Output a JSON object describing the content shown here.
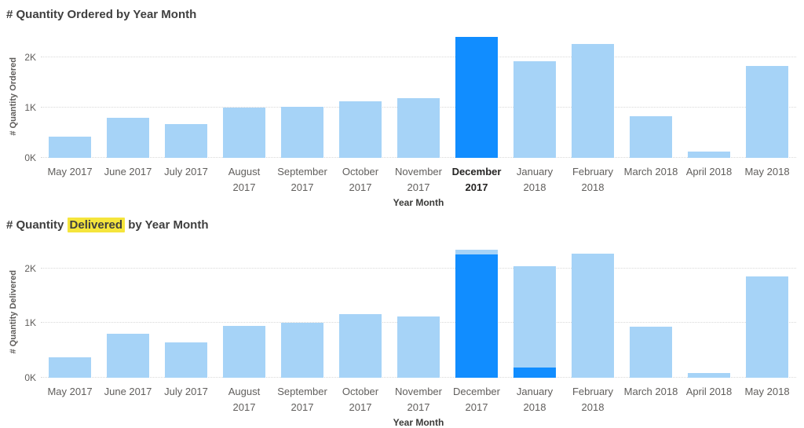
{
  "colors": {
    "bar_highlight": "#118DFF",
    "bar_dim": "#A6D3F7",
    "highlight_yellow": "#F5E53C",
    "title_text": "#3F3F3F",
    "axis_text": "#605E5C",
    "selected_label": "#252423",
    "gridline": "#D9D9D9"
  },
  "chart_data": [
    {
      "type": "bar",
      "title": "# Quantity Ordered by Year Month",
      "title_parts": [
        {
          "text": "# Quantity Ordered by Year Month",
          "highlight": false
        }
      ],
      "xlabel": "Year Month",
      "ylabel": "# Quantity Ordered",
      "ylim": [
        0,
        2450
      ],
      "grid": true,
      "legend": "none",
      "y_ticks": [
        {
          "label": "0K",
          "value": 0
        },
        {
          "label": "1K",
          "value": 1000
        },
        {
          "label": "2K",
          "value": 2000
        }
      ],
      "categories": [
        "May 2017",
        "June 2017",
        "July 2017",
        "August 2017",
        "September 2017",
        "October 2017",
        "November 2017",
        "December 2017",
        "January 2018",
        "February 2018",
        "March 2018",
        "April 2018",
        "May 2018"
      ],
      "values": [
        420,
        800,
        670,
        1000,
        1020,
        1120,
        1190,
        2410,
        1920,
        2270,
        820,
        130,
        1830
      ],
      "selected_category": "December 2017",
      "bars": [
        {
          "label_lines": [
            "May 2017"
          ],
          "selected": false,
          "segments": [
            {
              "value": 420,
              "highlighted": false
            }
          ]
        },
        {
          "label_lines": [
            "June 2017"
          ],
          "selected": false,
          "segments": [
            {
              "value": 800,
              "highlighted": false
            }
          ]
        },
        {
          "label_lines": [
            "July 2017"
          ],
          "selected": false,
          "segments": [
            {
              "value": 670,
              "highlighted": false
            }
          ]
        },
        {
          "label_lines": [
            "August",
            "2017"
          ],
          "selected": false,
          "segments": [
            {
              "value": 1000,
              "highlighted": false
            }
          ]
        },
        {
          "label_lines": [
            "September",
            "2017"
          ],
          "selected": false,
          "segments": [
            {
              "value": 1020,
              "highlighted": false
            }
          ]
        },
        {
          "label_lines": [
            "October",
            "2017"
          ],
          "selected": false,
          "segments": [
            {
              "value": 1120,
              "highlighted": false
            }
          ]
        },
        {
          "label_lines": [
            "November",
            "2017"
          ],
          "selected": false,
          "segments": [
            {
              "value": 1190,
              "highlighted": false
            }
          ]
        },
        {
          "label_lines": [
            "December",
            "2017"
          ],
          "selected": true,
          "segments": [
            {
              "value": 2410,
              "highlighted": true
            }
          ]
        },
        {
          "label_lines": [
            "January",
            "2018"
          ],
          "selected": false,
          "segments": [
            {
              "value": 1920,
              "highlighted": false
            }
          ]
        },
        {
          "label_lines": [
            "February",
            "2018"
          ],
          "selected": false,
          "segments": [
            {
              "value": 2270,
              "highlighted": false
            }
          ]
        },
        {
          "label_lines": [
            "March 2018"
          ],
          "selected": false,
          "segments": [
            {
              "value": 820,
              "highlighted": false
            }
          ]
        },
        {
          "label_lines": [
            "April 2018"
          ],
          "selected": false,
          "segments": [
            {
              "value": 130,
              "highlighted": false
            }
          ]
        },
        {
          "label_lines": [
            "May 2018"
          ],
          "selected": false,
          "segments": [
            {
              "value": 1830,
              "highlighted": false
            }
          ]
        }
      ]
    },
    {
      "type": "bar",
      "title": "# Quantity Delivered by Year Month",
      "title_parts": [
        {
          "text": "# Quantity ",
          "highlight": false
        },
        {
          "text": "Delivered",
          "highlight": true
        },
        {
          "text": " by Year Month",
          "highlight": false
        }
      ],
      "xlabel": "Year Month",
      "ylabel": "# Quantity Delivered",
      "ylim": [
        0,
        2400
      ],
      "grid": true,
      "legend": "none",
      "y_ticks": [
        {
          "label": "0K",
          "value": 0
        },
        {
          "label": "1K",
          "value": 1000
        },
        {
          "label": "2K",
          "value": 2000
        }
      ],
      "categories": [
        "May 2017",
        "June 2017",
        "July 2017",
        "August 2017",
        "September 2017",
        "October 2017",
        "November 2017",
        "December 2017",
        "January 2018",
        "February 2018",
        "March 2018",
        "April 2018",
        "May 2018"
      ],
      "series": [
        {
          "name": "highlighted",
          "values": [
            0,
            0,
            0,
            0,
            0,
            0,
            0,
            2260,
            190,
            0,
            0,
            0,
            0
          ]
        },
        {
          "name": "unhighlighted",
          "values": [
            380,
            800,
            650,
            950,
            1000,
            1170,
            1120,
            90,
            1850,
            2270,
            940,
            90,
            1860
          ]
        }
      ],
      "totals": [
        380,
        800,
        650,
        950,
        1000,
        1170,
        1120,
        2350,
        2040,
        2270,
        940,
        90,
        1860
      ],
      "bars": [
        {
          "label_lines": [
            "May 2017"
          ],
          "selected": false,
          "segments": [
            {
              "value": 380,
              "highlighted": false
            }
          ]
        },
        {
          "label_lines": [
            "June 2017"
          ],
          "selected": false,
          "segments": [
            {
              "value": 800,
              "highlighted": false
            }
          ]
        },
        {
          "label_lines": [
            "July 2017"
          ],
          "selected": false,
          "segments": [
            {
              "value": 650,
              "highlighted": false
            }
          ]
        },
        {
          "label_lines": [
            "August",
            "2017"
          ],
          "selected": false,
          "segments": [
            {
              "value": 950,
              "highlighted": false
            }
          ]
        },
        {
          "label_lines": [
            "September",
            "2017"
          ],
          "selected": false,
          "segments": [
            {
              "value": 1000,
              "highlighted": false
            }
          ]
        },
        {
          "label_lines": [
            "October",
            "2017"
          ],
          "selected": false,
          "segments": [
            {
              "value": 1170,
              "highlighted": false
            }
          ]
        },
        {
          "label_lines": [
            "November",
            "2017"
          ],
          "selected": false,
          "segments": [
            {
              "value": 1120,
              "highlighted": false
            }
          ]
        },
        {
          "label_lines": [
            "December",
            "2017"
          ],
          "selected": false,
          "segments": [
            {
              "value": 2260,
              "highlighted": true
            },
            {
              "value": 90,
              "highlighted": false
            }
          ]
        },
        {
          "label_lines": [
            "January",
            "2018"
          ],
          "selected": false,
          "segments": [
            {
              "value": 190,
              "highlighted": true
            },
            {
              "value": 1850,
              "highlighted": false
            }
          ]
        },
        {
          "label_lines": [
            "February",
            "2018"
          ],
          "selected": false,
          "segments": [
            {
              "value": 2270,
              "highlighted": false
            }
          ]
        },
        {
          "label_lines": [
            "March 2018"
          ],
          "selected": false,
          "segments": [
            {
              "value": 940,
              "highlighted": false
            }
          ]
        },
        {
          "label_lines": [
            "April 2018"
          ],
          "selected": false,
          "segments": [
            {
              "value": 90,
              "highlighted": false
            }
          ]
        },
        {
          "label_lines": [
            "May 2018"
          ],
          "selected": false,
          "segments": [
            {
              "value": 1860,
              "highlighted": false
            }
          ]
        }
      ]
    }
  ]
}
